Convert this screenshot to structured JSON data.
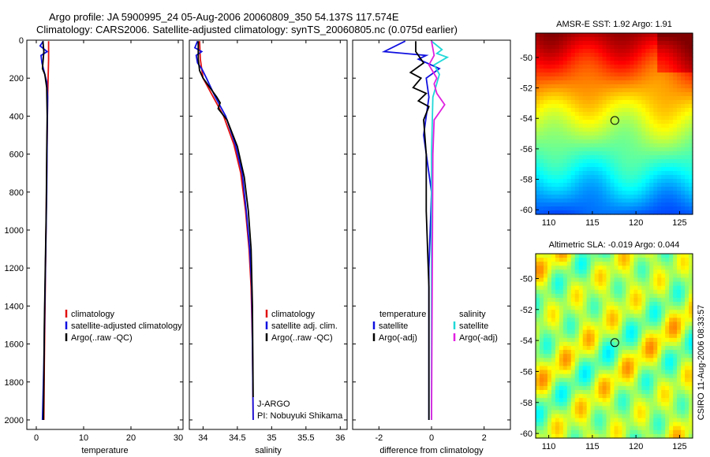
{
  "header": {
    "line1": "Argo profile: JA 5900995_24 05-Aug-2006 20060809_350 54.137S 117.574E",
    "line2": "Climatology: CARS2006. Satellite-adjusted climatology: synTS_20060805.nc (0.075d earlier)"
  },
  "credit": "CSIRO 11-Aug-2006 08:33:57",
  "colors": {
    "climatology": "#e01010",
    "satellite": "#1010e0",
    "argo": "#000000",
    "salinity_satellite": "#20d8d8",
    "salinity_argo": "#e020e0"
  },
  "chart_data": [
    {
      "type": "line",
      "name": "temperature-profile",
      "xlabel": "temperature",
      "xlim": [
        -2,
        31
      ],
      "ylim": [
        0,
        2050
      ],
      "xticks": [
        "0",
        "10",
        "20",
        "30"
      ],
      "yticks": [
        "0",
        "200",
        "400",
        "600",
        "800",
        "1000",
        "1200",
        "1400",
        "1600",
        "1800",
        "2000"
      ],
      "legend": [
        "climatology",
        "satellite-adjusted climatology",
        "Argo(..raw -QC)"
      ],
      "series": [
        {
          "name": "climatology",
          "x": [
            2.6,
            2.6,
            2.5,
            2.4,
            2.3,
            2.2,
            2.1,
            2.0,
            1.9,
            1.8,
            1.7,
            1.6
          ],
          "y": [
            5,
            100,
            200,
            300,
            500,
            700,
            900,
            1100,
            1300,
            1500,
            1700,
            2000
          ]
        },
        {
          "name": "satellite-adjusted climatology",
          "x": [
            1.5,
            0.8,
            2.3,
            1.0,
            1.2,
            1.6,
            2.2,
            2.4,
            2.3,
            2.2,
            2.0,
            1.8,
            1.6,
            1.3
          ],
          "y": [
            5,
            30,
            60,
            80,
            120,
            160,
            220,
            300,
            500,
            800,
            1100,
            1400,
            1700,
            2000
          ]
        },
        {
          "name": "Argo",
          "x": [
            1.4,
            1.6,
            1.3,
            1.8,
            2.2,
            2.3,
            2.2,
            2.1,
            1.9,
            1.7,
            1.6,
            1.5
          ],
          "y": [
            5,
            60,
            150,
            180,
            250,
            400,
            600,
            900,
            1200,
            1500,
            1800,
            2000
          ]
        }
      ]
    },
    {
      "type": "line",
      "name": "salinity-profile",
      "xlabel": "salinity",
      "xlim": [
        33.8,
        36.1
      ],
      "ylim": [
        0,
        2050
      ],
      "xticks": [
        "34",
        "34.5",
        "35",
        "35.5",
        "36"
      ],
      "legend": [
        "climatology",
        "satellite adj. clim.",
        "Argo(..raw -QC)"
      ],
      "annotation": [
        "J-ARGO",
        "PI: Nobuyuki Shikama"
      ],
      "series": [
        {
          "name": "climatology",
          "x": [
            33.95,
            33.96,
            34.0,
            34.15,
            34.3,
            34.45,
            34.55,
            34.62,
            34.67,
            34.7,
            34.72,
            34.73
          ],
          "y": [
            5,
            100,
            200,
            300,
            400,
            550,
            700,
            900,
            1100,
            1300,
            1600,
            2000
          ]
        },
        {
          "name": "satellite adj. clim.",
          "x": [
            33.92,
            33.88,
            33.98,
            33.9,
            33.92,
            33.98,
            34.05,
            34.18,
            34.33,
            34.47,
            34.57,
            34.63,
            34.68,
            34.71,
            34.72,
            34.73
          ],
          "y": [
            5,
            40,
            60,
            80,
            120,
            150,
            200,
            300,
            400,
            550,
            700,
            900,
            1100,
            1300,
            1600,
            2000
          ]
        },
        {
          "name": "Argo",
          "x": [
            33.93,
            33.93,
            33.95,
            34.0,
            34.1,
            34.2,
            34.25,
            34.22,
            34.35,
            34.5,
            34.6,
            34.66,
            34.7,
            34.72,
            34.73
          ],
          "y": [
            5,
            100,
            160,
            200,
            250,
            300,
            330,
            360,
            420,
            560,
            720,
            900,
            1100,
            1400,
            1880
          ]
        }
      ]
    },
    {
      "type": "line",
      "name": "difference-from-climatology",
      "xlabel": "difference from climatology",
      "xlim": [
        -3.0,
        3.0
      ],
      "ylim": [
        0,
        2050
      ],
      "xticks": [
        "-2",
        "0",
        "2"
      ],
      "legend_left": [
        "temperature",
        "satellite",
        "Argo(-adj)"
      ],
      "legend_right": [
        "salinity",
        "satellite",
        "Argo(-adj)"
      ],
      "series": [
        {
          "name": "temperature satellite",
          "x": [
            -1.0,
            -1.8,
            -0.2,
            -0.5,
            0.3,
            -0.2,
            -0.1,
            -0.2,
            -0.3,
            0.0,
            -0.1,
            -0.1,
            -0.1
          ],
          "y": [
            5,
            60,
            80,
            100,
            150,
            200,
            300,
            400,
            500,
            800,
            1200,
            1600,
            2000
          ]
        },
        {
          "name": "temperature Argo",
          "x": [
            -0.6,
            -0.6,
            -0.3,
            -0.8,
            -0.4,
            -0.7,
            -0.2,
            -0.5,
            -0.1,
            -0.3,
            -0.2,
            -0.2,
            -0.1,
            -0.1,
            -0.1
          ],
          "y": [
            5,
            60,
            120,
            170,
            200,
            250,
            280,
            320,
            350,
            420,
            600,
            900,
            1300,
            1700,
            2000
          ]
        },
        {
          "name": "salinity satellite",
          "x": [
            0.0,
            0.4,
            0.2,
            0.6,
            0.1,
            0.3,
            0.05,
            0.0,
            0.0,
            0.0
          ],
          "y": [
            5,
            50,
            70,
            90,
            130,
            180,
            300,
            600,
            1200,
            2000
          ]
        },
        {
          "name": "salinity Argo",
          "x": [
            0.0,
            0.1,
            -0.1,
            0.2,
            0.1,
            0.2,
            0.5,
            0.3,
            0.1,
            0.05,
            0.0
          ],
          "y": [
            5,
            80,
            130,
            200,
            230,
            280,
            340,
            380,
            420,
            600,
            2000
          ]
        }
      ]
    },
    {
      "type": "heatmap",
      "name": "sst-map",
      "title": "AMSR-E SST: 1.92 Argo: 1.91",
      "xlim": [
        108.5,
        126.5
      ],
      "ylim": [
        -60.3,
        -48.4
      ],
      "xticks": [
        "110",
        "115",
        "120",
        "125"
      ],
      "yticks": [
        "-50",
        "-52",
        "-54",
        "-56",
        "-58",
        "-60"
      ],
      "marker": {
        "lon": 117.574,
        "lat": -54.137
      }
    },
    {
      "type": "heatmap",
      "name": "sla-map",
      "title": "Altimetric SLA: -0.019 Argo: 0.044",
      "xlim": [
        108.5,
        126.5
      ],
      "ylim": [
        -60.3,
        -48.4
      ],
      "xticks": [
        "110",
        "115",
        "120",
        "125"
      ],
      "yticks": [
        "-50",
        "-52",
        "-54",
        "-56",
        "-58",
        "-60"
      ],
      "marker": {
        "lon": 117.574,
        "lat": -54.137
      }
    }
  ]
}
